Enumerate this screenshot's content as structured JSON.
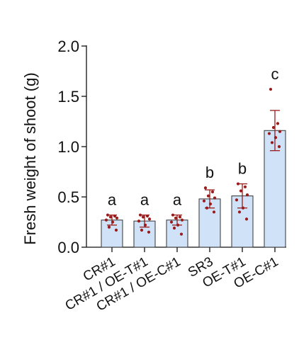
{
  "chart_data": {
    "type": "bar",
    "ylabel": "Fresh weight of shoot (g)",
    "xlabel": "",
    "ylim": [
      0,
      2.0
    ],
    "yticks": [
      "0.0",
      "0.5",
      "1.0",
      "1.5",
      "2.0"
    ],
    "ytick_values": [
      0,
      0.5,
      1.0,
      1.5,
      2.0
    ],
    "grid": false,
    "categories": [
      "CR#1",
      "CR#1 / OE-T#1",
      "CR#1 / OE-C#1",
      "SR3",
      "OE-T#1",
      "OE-C#1"
    ],
    "values": [
      0.27,
      0.26,
      0.27,
      0.48,
      0.51,
      1.16
    ],
    "sd": [
      0.05,
      0.06,
      0.05,
      0.09,
      0.12,
      0.2
    ],
    "significance": [
      "a",
      "a",
      "a",
      "b",
      "b",
      "c"
    ],
    "points": [
      [
        0.32,
        0.31,
        0.3,
        0.29,
        0.27,
        0.25,
        0.2,
        0.17
      ],
      [
        0.32,
        0.31,
        0.3,
        0.28,
        0.26,
        0.22,
        0.17,
        0.15
      ],
      [
        0.32,
        0.3,
        0.29,
        0.27,
        0.25,
        0.22,
        0.19,
        0.13
      ],
      [
        0.59,
        0.55,
        0.51,
        0.49,
        0.46,
        0.43,
        0.39,
        0.35
      ],
      [
        0.63,
        0.6,
        0.56,
        0.52,
        0.47,
        0.39,
        0.35,
        0.28
      ],
      [
        1.57,
        1.23,
        1.19,
        1.15,
        1.13,
        1.09,
        1.04,
        1.0
      ]
    ],
    "colors": {
      "bar_fill": "#cfe2f7",
      "bar_stroke": "#333333",
      "point": "#9b1b1b",
      "error": "#9b1b1b",
      "axis": "#111111"
    }
  }
}
